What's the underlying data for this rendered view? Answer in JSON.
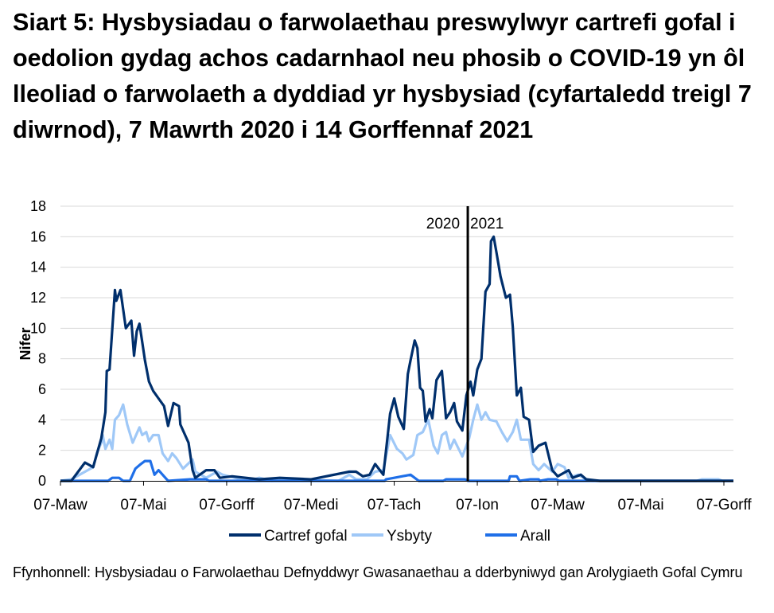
{
  "title": "Siart 5: Hysbysiadau o farwolaethau preswylwyr cartrefi gofal i oedolion gydag achos cadarnhaol neu phosib o COVID-19 yn ôl lleoliad o farwolaeth a dyddiad yr hysbysiad (cyfartaledd treigl 7 diwrnod), 7 Mawrth 2020 i 14 Gorffennaf 2021",
  "source": "Ffynhonnell: Hysbysiadau o Farwolaethau Defnyddwyr Gwasanaethau a dderbyniwyd gan Arolygiaeth Gofal Cymru",
  "chart_data": {
    "type": "line",
    "title": "Siart 5: Hysbysiadau o farwolaethau preswylwyr cartrefi gofal i oedolion gydag achos cadarnhaol neu phosib o COVID-19 yn ôl lleoliad o farwolaeth a dyddiad yr hysbysiad (cyfartaledd treigl 7 diwrnod), 7 Mawrth 2020 i 14 Gorffennaf 2021",
    "xlabel": "",
    "ylabel": "Nifer",
    "xlim": [
      "2020-03-07",
      "2021-07-14"
    ],
    "ylim": [
      0,
      18
    ],
    "yticks": [
      "0",
      "2",
      "4",
      "6",
      "8",
      "10",
      "12",
      "14",
      "16",
      "18"
    ],
    "xticks": [
      {
        "date": "2020-03-07",
        "label": "07-Maw"
      },
      {
        "date": "2020-05-07",
        "label": "07-Mai"
      },
      {
        "date": "2020-07-07",
        "label": "07-Gorff"
      },
      {
        "date": "2020-09-07",
        "label": "07-Medi"
      },
      {
        "date": "2020-11-07",
        "label": "07-Tach"
      },
      {
        "date": "2021-01-07",
        "label": "07-Ion"
      },
      {
        "date": "2021-03-07",
        "label": "07-Maw"
      },
      {
        "date": "2021-05-07",
        "label": "07-Mai"
      },
      {
        "date": "2021-07-07",
        "label": "07-Gorff"
      }
    ],
    "grid": "horizontal",
    "legend_position": "bottom",
    "annotations": {
      "divider_date": "2020-12-31",
      "left_label": "2020",
      "right_label": "2021"
    },
    "series": [
      {
        "name": "Cartref gofal",
        "color": "#002f6c",
        "points": [
          [
            "2020-03-07",
            0
          ],
          [
            "2020-03-15",
            0
          ],
          [
            "2020-03-25",
            1.2
          ],
          [
            "2020-03-31",
            0.9
          ],
          [
            "2020-04-06",
            2.8
          ],
          [
            "2020-04-09",
            4.5
          ],
          [
            "2020-04-10",
            7.2
          ],
          [
            "2020-04-12",
            7.3
          ],
          [
            "2020-04-16",
            12.5
          ],
          [
            "2020-04-17",
            11.8
          ],
          [
            "2020-04-20",
            12.5
          ],
          [
            "2020-04-24",
            10
          ],
          [
            "2020-04-28",
            10.5
          ],
          [
            "2020-04-30",
            8.2
          ],
          [
            "2020-05-02",
            9.8
          ],
          [
            "2020-05-04",
            10.3
          ],
          [
            "2020-05-06",
            9.1
          ],
          [
            "2020-05-08",
            7.9
          ],
          [
            "2020-05-11",
            6.5
          ],
          [
            "2020-05-14",
            5.9
          ],
          [
            "2020-05-18",
            5.4
          ],
          [
            "2020-05-22",
            4.9
          ],
          [
            "2020-05-25",
            3.6
          ],
          [
            "2020-05-29",
            5.1
          ],
          [
            "2020-06-02",
            4.9
          ],
          [
            "2020-06-03",
            3.7
          ],
          [
            "2020-06-09",
            2.5
          ],
          [
            "2020-06-12",
            0.7
          ],
          [
            "2020-06-14",
            0.2
          ],
          [
            "2020-06-22",
            0.7
          ],
          [
            "2020-06-28",
            0.7
          ],
          [
            "2020-07-02",
            0.2
          ],
          [
            "2020-07-11",
            0.3
          ],
          [
            "2020-07-31",
            0.1
          ],
          [
            "2020-08-15",
            0.2
          ],
          [
            "2020-09-07",
            0.1
          ],
          [
            "2020-10-05",
            0.6
          ],
          [
            "2020-10-10",
            0.6
          ],
          [
            "2020-10-15",
            0.3
          ],
          [
            "2020-10-20",
            0.4
          ],
          [
            "2020-10-24",
            1.1
          ],
          [
            "2020-10-30",
            0.4
          ],
          [
            "2020-11-04",
            4.4
          ],
          [
            "2020-11-07",
            5.4
          ],
          [
            "2020-11-10",
            4.2
          ],
          [
            "2020-11-14",
            3.4
          ],
          [
            "2020-11-17",
            7.0
          ],
          [
            "2020-11-19",
            7.9
          ],
          [
            "2020-11-22",
            9.2
          ],
          [
            "2020-11-24",
            8.7
          ],
          [
            "2020-11-26",
            6.1
          ],
          [
            "2020-11-28",
            5.9
          ],
          [
            "2020-11-30",
            3.9
          ],
          [
            "2020-12-03",
            4.7
          ],
          [
            "2020-12-05",
            4.1
          ],
          [
            "2020-12-08",
            6.6
          ],
          [
            "2020-12-12",
            7.2
          ],
          [
            "2020-12-15",
            4.1
          ],
          [
            "2020-12-18",
            4.5
          ],
          [
            "2020-12-21",
            5.1
          ],
          [
            "2020-12-23",
            3.9
          ],
          [
            "2020-12-27",
            3.3
          ],
          [
            "2020-12-30",
            5.6
          ],
          [
            "2021-01-02",
            6.5
          ],
          [
            "2021-01-04",
            5.6
          ],
          [
            "2021-01-07",
            7.3
          ],
          [
            "2021-01-10",
            8.0
          ],
          [
            "2021-01-13",
            12.4
          ],
          [
            "2021-01-16",
            12.9
          ],
          [
            "2021-01-17",
            15.7
          ],
          [
            "2021-01-19",
            16.0
          ],
          [
            "2021-01-21",
            15.0
          ],
          [
            "2021-01-24",
            13.4
          ],
          [
            "2021-01-28",
            12.0
          ],
          [
            "2021-01-31",
            12.2
          ],
          [
            "2021-02-02",
            10.1
          ],
          [
            "2021-02-05",
            5.6
          ],
          [
            "2021-02-08",
            6.1
          ],
          [
            "2021-02-10",
            4.2
          ],
          [
            "2021-02-14",
            4.0
          ],
          [
            "2021-02-17",
            1.9
          ],
          [
            "2021-02-21",
            2.3
          ],
          [
            "2021-02-26",
            2.5
          ],
          [
            "2021-03-03",
            0.7
          ],
          [
            "2021-03-07",
            0.3
          ],
          [
            "2021-03-15",
            0.7
          ],
          [
            "2021-03-18",
            0.2
          ],
          [
            "2021-03-24",
            0.4
          ],
          [
            "2021-03-28",
            0.1
          ],
          [
            "2021-04-07",
            0
          ],
          [
            "2021-07-14",
            0
          ]
        ]
      },
      {
        "name": "Ysbyty",
        "color": "#9fc8f7",
        "points": [
          [
            "2020-03-07",
            0
          ],
          [
            "2020-03-15",
            0.1
          ],
          [
            "2020-03-21",
            0.4
          ],
          [
            "2020-03-27",
            0.7
          ],
          [
            "2020-03-31",
            0.9
          ],
          [
            "2020-04-03",
            1.9
          ],
          [
            "2020-04-06",
            2.5
          ],
          [
            "2020-04-07",
            3.0
          ],
          [
            "2020-04-09",
            2.1
          ],
          [
            "2020-04-12",
            2.7
          ],
          [
            "2020-04-14",
            2.1
          ],
          [
            "2020-04-16",
            4.0
          ],
          [
            "2020-04-19",
            4.3
          ],
          [
            "2020-04-22",
            5.0
          ],
          [
            "2020-04-25",
            3.7
          ],
          [
            "2020-04-29",
            2.5
          ],
          [
            "2020-05-04",
            3.5
          ],
          [
            "2020-05-06",
            3.0
          ],
          [
            "2020-05-09",
            3.2
          ],
          [
            "2020-05-11",
            2.6
          ],
          [
            "2020-05-14",
            3.0
          ],
          [
            "2020-05-18",
            3.0
          ],
          [
            "2020-05-21",
            1.8
          ],
          [
            "2020-05-25",
            1.3
          ],
          [
            "2020-05-28",
            1.8
          ],
          [
            "2020-05-31",
            1.5
          ],
          [
            "2020-06-05",
            0.8
          ],
          [
            "2020-06-12",
            1.4
          ],
          [
            "2020-06-14",
            0.6
          ],
          [
            "2020-06-22",
            0.2
          ],
          [
            "2020-06-30",
            0.6
          ],
          [
            "2020-07-04",
            0.4
          ],
          [
            "2020-07-13",
            0.2
          ],
          [
            "2020-07-23",
            0
          ],
          [
            "2020-07-31",
            0.2
          ],
          [
            "2020-08-09",
            0
          ],
          [
            "2020-08-24",
            0.1
          ],
          [
            "2020-09-27",
            0
          ],
          [
            "2020-10-05",
            0.4
          ],
          [
            "2020-10-10",
            0.1
          ],
          [
            "2020-10-18",
            0.1
          ],
          [
            "2020-10-24",
            0.6
          ],
          [
            "2020-10-30",
            0.7
          ],
          [
            "2020-11-01",
            1.6
          ],
          [
            "2020-11-04",
            3.0
          ],
          [
            "2020-11-09",
            2.1
          ],
          [
            "2020-11-13",
            1.8
          ],
          [
            "2020-11-16",
            1.4
          ],
          [
            "2020-11-21",
            1.7
          ],
          [
            "2020-11-24",
            3.0
          ],
          [
            "2020-11-28",
            3.2
          ],
          [
            "2020-12-02",
            4.0
          ],
          [
            "2020-12-06",
            2.3
          ],
          [
            "2020-12-09",
            1.8
          ],
          [
            "2020-12-12",
            3.0
          ],
          [
            "2020-12-15",
            3.2
          ],
          [
            "2020-12-18",
            2.1
          ],
          [
            "2020-12-21",
            2.7
          ],
          [
            "2020-12-27",
            1.6
          ],
          [
            "2021-01-01",
            2.8
          ],
          [
            "2021-01-04",
            4.0
          ],
          [
            "2021-01-07",
            5.0
          ],
          [
            "2021-01-10",
            4.0
          ],
          [
            "2021-01-13",
            4.5
          ],
          [
            "2021-01-16",
            4.0
          ],
          [
            "2021-01-21",
            3.9
          ],
          [
            "2021-01-25",
            3.2
          ],
          [
            "2021-01-29",
            2.6
          ],
          [
            "2021-02-02",
            3.2
          ],
          [
            "2021-02-05",
            4.0
          ],
          [
            "2021-02-08",
            2.7
          ],
          [
            "2021-02-14",
            2.7
          ],
          [
            "2021-02-17",
            1.1
          ],
          [
            "2021-02-21",
            0.7
          ],
          [
            "2021-02-25",
            1.1
          ],
          [
            "2021-03-03",
            0.6
          ],
          [
            "2021-03-07",
            1.1
          ],
          [
            "2021-03-12",
            0.9
          ],
          [
            "2021-03-15",
            0.2
          ],
          [
            "2021-03-22",
            0.4
          ],
          [
            "2021-03-28",
            0.1
          ],
          [
            "2021-04-01",
            0
          ],
          [
            "2021-06-17",
            0
          ],
          [
            "2021-06-21",
            0.1
          ],
          [
            "2021-07-03",
            0.1
          ],
          [
            "2021-07-06",
            0
          ],
          [
            "2021-07-14",
            0
          ]
        ]
      },
      {
        "name": "Arall",
        "color": "#1f6fe8",
        "points": [
          [
            "2020-03-07",
            0
          ],
          [
            "2020-04-11",
            0
          ],
          [
            "2020-04-14",
            0.2
          ],
          [
            "2020-04-19",
            0.2
          ],
          [
            "2020-04-22",
            0
          ],
          [
            "2020-04-27",
            0
          ],
          [
            "2020-05-01",
            0.8
          ],
          [
            "2020-05-05",
            1.1
          ],
          [
            "2020-05-08",
            1.3
          ],
          [
            "2020-05-12",
            1.3
          ],
          [
            "2020-05-15",
            0.4
          ],
          [
            "2020-05-18",
            0.7
          ],
          [
            "2020-05-22",
            0.3
          ],
          [
            "2020-05-25",
            0
          ],
          [
            "2020-06-10",
            0.1
          ],
          [
            "2020-06-22",
            0.1
          ],
          [
            "2020-06-24",
            0
          ],
          [
            "2020-10-31",
            0
          ],
          [
            "2020-11-01",
            0.1
          ],
          [
            "2020-11-07",
            0.2
          ],
          [
            "2020-11-19",
            0.4
          ],
          [
            "2020-11-25",
            0
          ],
          [
            "2020-12-13",
            0
          ],
          [
            "2020-12-15",
            0.1
          ],
          [
            "2020-12-29",
            0.1
          ],
          [
            "2020-12-31",
            0
          ],
          [
            "2021-01-30",
            0
          ],
          [
            "2021-01-31",
            0.3
          ],
          [
            "2021-02-05",
            0.3
          ],
          [
            "2021-02-07",
            0
          ],
          [
            "2021-02-15",
            0.1
          ],
          [
            "2021-02-21",
            0.1
          ],
          [
            "2021-02-22",
            0
          ],
          [
            "2021-02-28",
            0.1
          ],
          [
            "2021-03-06",
            0.1
          ],
          [
            "2021-03-08",
            0
          ],
          [
            "2021-07-14",
            0
          ]
        ]
      }
    ]
  }
}
